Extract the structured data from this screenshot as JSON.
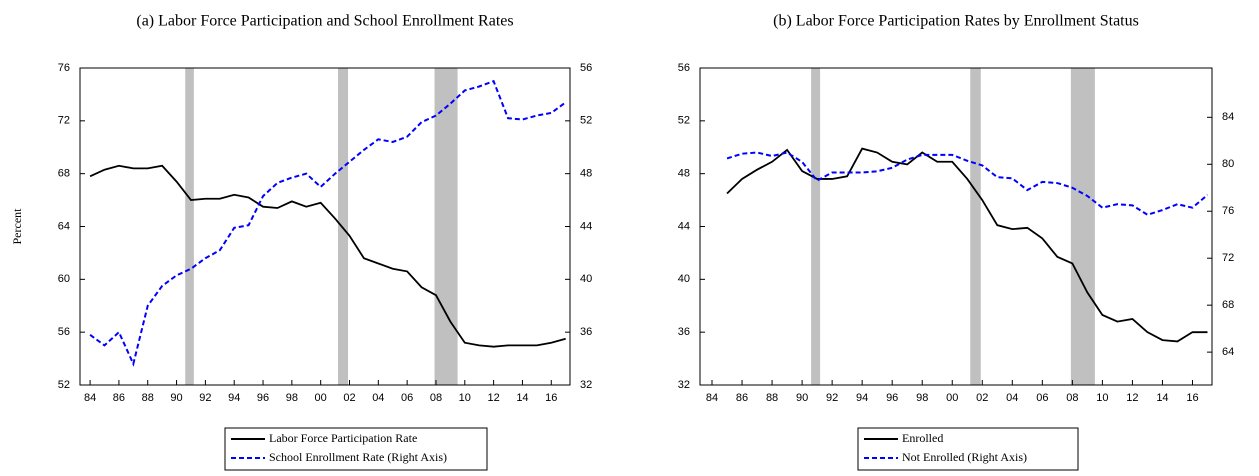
{
  "chart_data": [
    {
      "type": "line",
      "title": "(a) Labor Force Participation and School Enrollment Rates",
      "ylabel": "Percent",
      "x": [
        1984,
        1985,
        1986,
        1987,
        1988,
        1989,
        1990,
        1991,
        1992,
        1993,
        1994,
        1995,
        1996,
        1997,
        1998,
        1999,
        2000,
        2001,
        2002,
        2003,
        2004,
        2005,
        2006,
        2007,
        2008,
        2009,
        2010,
        2011,
        2012,
        2013,
        2014,
        2015,
        2016,
        2017
      ],
      "series": [
        {
          "name": "Labor Force Participation Rate",
          "color": "#000000",
          "line_style": "solid",
          "axis": "y",
          "values": [
            67.8,
            68.3,
            68.6,
            68.4,
            68.4,
            68.6,
            67.4,
            66.0,
            66.1,
            66.1,
            66.4,
            66.2,
            65.5,
            65.4,
            65.9,
            65.5,
            65.8,
            64.6,
            63.3,
            61.6,
            61.2,
            60.8,
            60.6,
            59.4,
            58.8,
            56.8,
            55.2,
            55.0,
            54.9,
            55.0,
            55.0,
            55.0,
            55.2,
            55.5
          ]
        },
        {
          "name": "School Enrollment Rate (Right Axis)",
          "color": "#0000ff",
          "line_style": "dashed",
          "axis": "y2",
          "values": [
            35.8,
            35.0,
            36.0,
            33.6,
            38.0,
            39.5,
            40.3,
            40.8,
            41.6,
            42.2,
            43.9,
            44.1,
            46.3,
            47.3,
            47.7,
            48.0,
            47.0,
            48.0,
            48.9,
            49.8,
            50.6,
            50.4,
            50.8,
            51.9,
            52.4,
            53.3,
            54.3,
            54.6,
            55.0,
            52.2,
            52.1,
            52.4,
            52.6,
            53.4
          ]
        }
      ],
      "shaded_periods": [
        [
          1990.6,
          1991.2
        ],
        [
          2001.2,
          2001.9
        ],
        [
          2007.9,
          2009.5
        ]
      ],
      "shade_color": "#c0c0c0",
      "xlim": [
        1983.3,
        2017.3
      ],
      "xticks": [
        {
          "value": 1984,
          "label": "84"
        },
        {
          "value": 1986,
          "label": "86"
        },
        {
          "value": 1988,
          "label": "88"
        },
        {
          "value": 1990,
          "label": "90"
        },
        {
          "value": 1992,
          "label": "92"
        },
        {
          "value": 1994,
          "label": "94"
        },
        {
          "value": 1996,
          "label": "96"
        },
        {
          "value": 1998,
          "label": "98"
        },
        {
          "value": 2000,
          "label": "00"
        },
        {
          "value": 2002,
          "label": "02"
        },
        {
          "value": 2004,
          "label": "04"
        },
        {
          "value": 2006,
          "label": "06"
        },
        {
          "value": 2008,
          "label": "08"
        },
        {
          "value": 2010,
          "label": "10"
        },
        {
          "value": 2012,
          "label": "12"
        },
        {
          "value": 2014,
          "label": "14"
        },
        {
          "value": 2016,
          "label": "16"
        }
      ],
      "ylim": [
        52,
        76
      ],
      "yticks": [
        52,
        56,
        60,
        64,
        68,
        72,
        76
      ],
      "y2lim": [
        32,
        56
      ],
      "y2ticks": [
        32,
        36,
        40,
        44,
        48,
        52,
        56
      ],
      "grid": false
    },
    {
      "type": "line",
      "title": "(b) Labor Force Participation Rates by Enrollment Status",
      "x": [
        1985,
        1986,
        1987,
        1988,
        1989,
        1990,
        1991,
        1992,
        1993,
        1994,
        1995,
        1996,
        1997,
        1998,
        1999,
        2000,
        2001,
        2002,
        2003,
        2004,
        2005,
        2006,
        2007,
        2008,
        2009,
        2010,
        2011,
        2012,
        2013,
        2014,
        2015,
        2016,
        2017
      ],
      "series": [
        {
          "name": "Enrolled",
          "color": "#000000",
          "line_style": "solid",
          "axis": "y",
          "values": [
            46.5,
            47.6,
            48.3,
            48.9,
            49.8,
            48.2,
            47.6,
            47.6,
            47.8,
            49.9,
            49.6,
            48.9,
            48.7,
            49.6,
            48.9,
            48.9,
            47.6,
            46.0,
            44.1,
            43.8,
            43.9,
            43.1,
            41.7,
            41.2,
            39.0,
            37.3,
            36.8,
            37.0,
            36.0,
            35.4,
            35.3,
            36.0,
            36.0
          ]
        },
        {
          "name": "Not Enrolled (Right Axis)",
          "color": "#0000ff",
          "line_style": "dashed",
          "axis": "y2",
          "values": [
            80.5,
            80.9,
            81.0,
            80.7,
            81.0,
            80.2,
            78.6,
            79.3,
            79.3,
            79.3,
            79.4,
            79.7,
            80.4,
            80.8,
            80.8,
            80.8,
            80.3,
            79.9,
            78.9,
            78.8,
            77.8,
            78.5,
            78.4,
            78.0,
            77.3,
            76.3,
            76.6,
            76.5,
            75.7,
            76.1,
            76.6,
            76.3,
            77.4
          ]
        }
      ],
      "shaded_periods": [
        [
          1990.6,
          1991.2
        ],
        [
          2001.2,
          2001.9
        ],
        [
          2007.9,
          2009.5
        ]
      ],
      "shade_color": "#c0c0c0",
      "xlim": [
        1983.2,
        2017.3
      ],
      "xticks": [
        {
          "value": 1984,
          "label": "84"
        },
        {
          "value": 1986,
          "label": "86"
        },
        {
          "value": 1988,
          "label": "88"
        },
        {
          "value": 1990,
          "label": "90"
        },
        {
          "value": 1992,
          "label": "92"
        },
        {
          "value": 1994,
          "label": "94"
        },
        {
          "value": 1996,
          "label": "96"
        },
        {
          "value": 1998,
          "label": "98"
        },
        {
          "value": 2000,
          "label": "00"
        },
        {
          "value": 2002,
          "label": "02"
        },
        {
          "value": 2004,
          "label": "04"
        },
        {
          "value": 2006,
          "label": "06"
        },
        {
          "value": 2008,
          "label": "08"
        },
        {
          "value": 2010,
          "label": "10"
        },
        {
          "value": 2012,
          "label": "12"
        },
        {
          "value": 2014,
          "label": "14"
        },
        {
          "value": 2016,
          "label": "16"
        }
      ],
      "ylim": [
        32,
        56
      ],
      "yticks": [
        32,
        36,
        40,
        44,
        48,
        52,
        56
      ],
      "y2lim": [
        61.2,
        88.2
      ],
      "y2ticks": [
        64,
        68,
        72,
        76,
        80,
        84
      ],
      "grid": false
    }
  ]
}
